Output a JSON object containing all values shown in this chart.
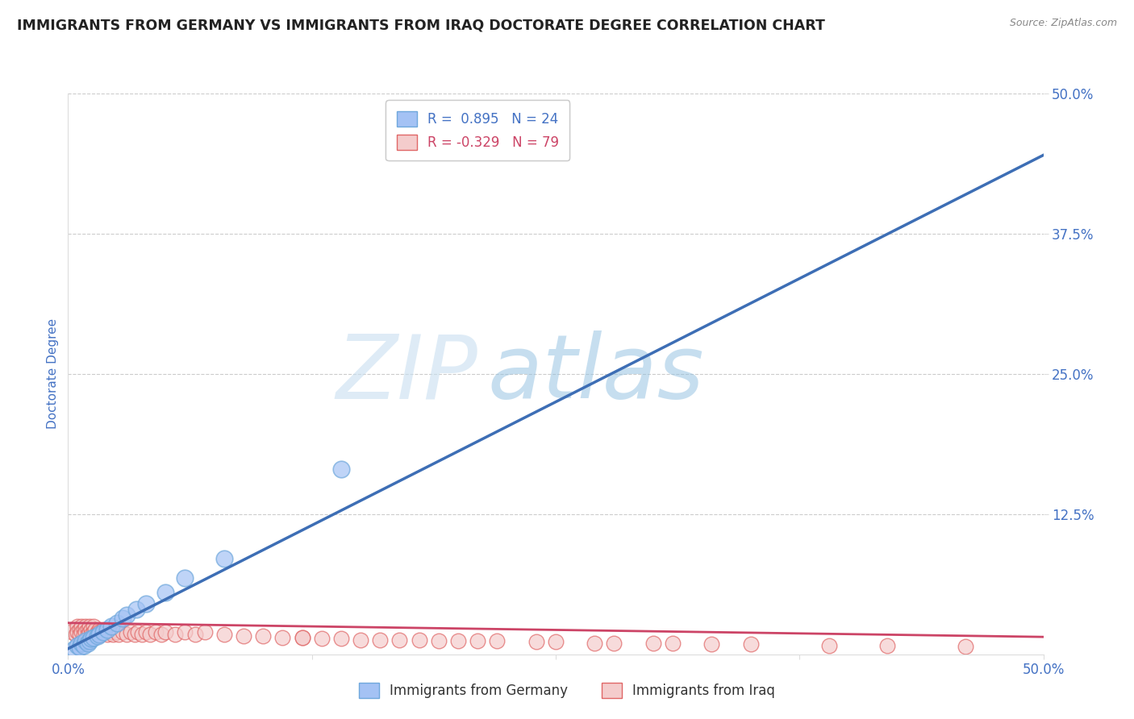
{
  "title": "IMMIGRANTS FROM GERMANY VS IMMIGRANTS FROM IRAQ DOCTORATE DEGREE CORRELATION CHART",
  "source": "Source: ZipAtlas.com",
  "xlabel_germany": "Immigrants from Germany",
  "xlabel_iraq": "Immigrants from Iraq",
  "ylabel": "Doctorate Degree",
  "xlim": [
    0.0,
    0.5
  ],
  "ylim": [
    0.0,
    0.5
  ],
  "germany_color": "#a4c2f4",
  "iraq_color": "#f4cccc",
  "germany_edge_color": "#6fa8dc",
  "iraq_edge_color": "#e06666",
  "germany_R": 0.895,
  "germany_N": 24,
  "iraq_R": -0.329,
  "iraq_N": 79,
  "germany_line_color": "#3d6eb5",
  "iraq_line_color": "#cc4466",
  "watermark": "ZIPAtlas",
  "watermark_color": "#b8d0e8",
  "axis_label_color": "#4472c4",
  "tick_color": "#4472c4",
  "grid_color": "#cccccc",
  "legend_text_color_1": "#4472c4",
  "legend_text_color_2": "#cc4466",
  "germany_line_slope": 0.88,
  "germany_line_intercept": 0.005,
  "iraq_line_slope": -0.025,
  "iraq_line_intercept": 0.028,
  "germany_scatter_x": [
    0.003,
    0.005,
    0.006,
    0.007,
    0.008,
    0.009,
    0.01,
    0.011,
    0.012,
    0.013,
    0.015,
    0.016,
    0.018,
    0.02,
    0.022,
    0.025,
    0.028,
    0.03,
    0.035,
    0.04,
    0.05,
    0.06,
    0.08,
    0.14
  ],
  "germany_scatter_y": [
    0.005,
    0.008,
    0.006,
    0.01,
    0.008,
    0.012,
    0.01,
    0.012,
    0.014,
    0.015,
    0.016,
    0.018,
    0.02,
    0.022,
    0.025,
    0.028,
    0.032,
    0.035,
    0.04,
    0.045,
    0.055,
    0.068,
    0.085,
    0.165
  ],
  "iraq_scatter_x": [
    0.002,
    0.003,
    0.004,
    0.005,
    0.005,
    0.006,
    0.006,
    0.007,
    0.007,
    0.008,
    0.008,
    0.009,
    0.009,
    0.01,
    0.01,
    0.011,
    0.011,
    0.012,
    0.012,
    0.013,
    0.013,
    0.014,
    0.014,
    0.015,
    0.015,
    0.016,
    0.016,
    0.017,
    0.018,
    0.019,
    0.02,
    0.021,
    0.022,
    0.023,
    0.024,
    0.025,
    0.026,
    0.028,
    0.03,
    0.032,
    0.034,
    0.036,
    0.038,
    0.04,
    0.042,
    0.045,
    0.048,
    0.05,
    0.055,
    0.06,
    0.065,
    0.07,
    0.08,
    0.09,
    0.1,
    0.11,
    0.12,
    0.14,
    0.16,
    0.18,
    0.2,
    0.22,
    0.25,
    0.28,
    0.31,
    0.35,
    0.39,
    0.42,
    0.46,
    0.12,
    0.13,
    0.15,
    0.17,
    0.19,
    0.21,
    0.24,
    0.27,
    0.3,
    0.33
  ],
  "iraq_scatter_y": [
    0.02,
    0.022,
    0.018,
    0.025,
    0.02,
    0.022,
    0.018,
    0.025,
    0.02,
    0.022,
    0.018,
    0.025,
    0.02,
    0.022,
    0.018,
    0.025,
    0.02,
    0.022,
    0.018,
    0.025,
    0.02,
    0.018,
    0.022,
    0.02,
    0.018,
    0.022,
    0.02,
    0.018,
    0.022,
    0.02,
    0.018,
    0.022,
    0.02,
    0.018,
    0.022,
    0.02,
    0.018,
    0.02,
    0.018,
    0.02,
    0.018,
    0.02,
    0.018,
    0.02,
    0.018,
    0.02,
    0.018,
    0.02,
    0.018,
    0.02,
    0.018,
    0.02,
    0.018,
    0.016,
    0.016,
    0.015,
    0.015,
    0.014,
    0.013,
    0.013,
    0.012,
    0.012,
    0.011,
    0.01,
    0.01,
    0.009,
    0.008,
    0.008,
    0.007,
    0.015,
    0.014,
    0.013,
    0.013,
    0.012,
    0.012,
    0.011,
    0.01,
    0.01,
    0.009
  ]
}
